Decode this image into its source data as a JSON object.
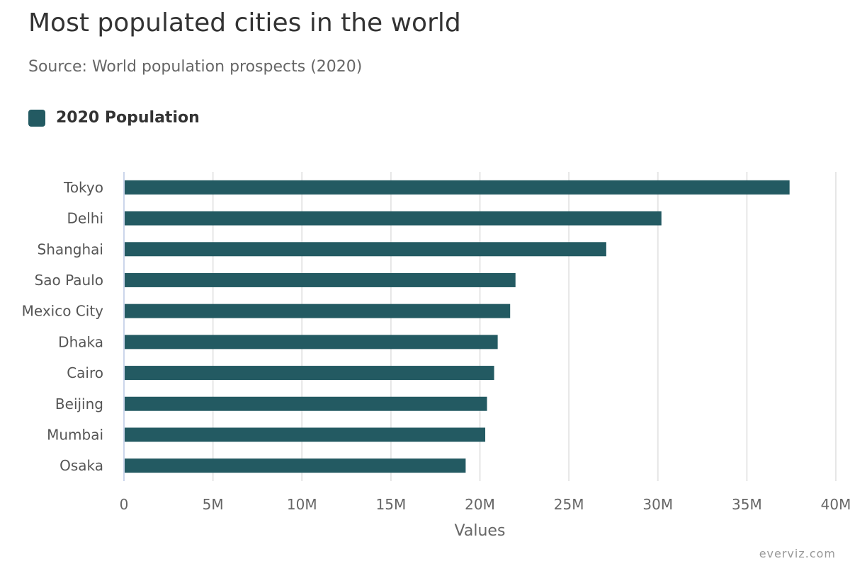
{
  "chart_data": {
    "type": "bar",
    "orientation": "horizontal",
    "title": "Most populated cities in the world",
    "subtitle": "Source: World population prospects (2020)",
    "xlabel": "Values",
    "ylabel": "",
    "categories": [
      "Tokyo",
      "Delhi",
      "Shanghai",
      "Sao Paulo",
      "Mexico City",
      "Dhaka",
      "Cairo",
      "Beijing",
      "Mumbai",
      "Osaka"
    ],
    "series": [
      {
        "name": "2020 Population",
        "color": "#235a62",
        "values": [
          37400000,
          30200000,
          27100000,
          22000000,
          21700000,
          21000000,
          20800000,
          20400000,
          20300000,
          19200000
        ]
      }
    ],
    "xlim": [
      0,
      40000000
    ],
    "tick_values": [
      0,
      5000000,
      10000000,
      15000000,
      20000000,
      25000000,
      30000000,
      35000000,
      40000000
    ],
    "tick_labels": [
      "0",
      "5M",
      "10M",
      "15M",
      "20M",
      "25M",
      "30M",
      "35M",
      "40M"
    ],
    "grid": true,
    "legend_position": "top-left"
  },
  "credit": "everviz.com"
}
